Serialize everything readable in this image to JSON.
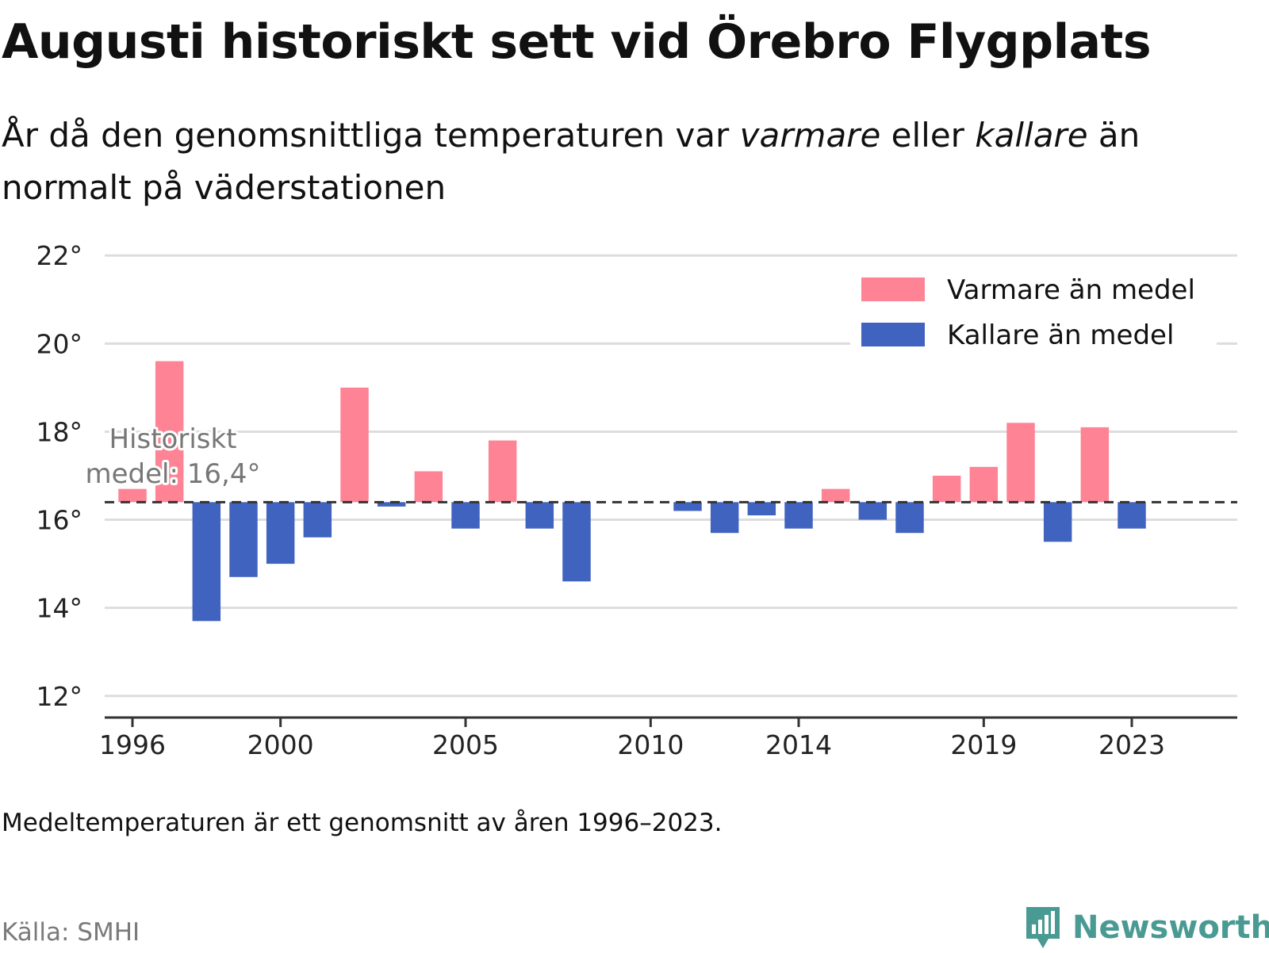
{
  "title": "Augusti historiskt sett vid Örebro Flygplats",
  "subtitle": {
    "part1": "År då den genomsnittliga temperaturen var ",
    "warm_word": "varmare",
    "part2": " eller ",
    "cold_word": "kallare",
    "part3": " än normalt på väderstationen"
  },
  "footnote": "Medeltemperaturen är ett genomsnitt av åren 1996–2023.",
  "source": "Källa: SMHI",
  "brand": "Newsworthy",
  "colors": {
    "warm": "#fe8394",
    "cold": "#4063bf",
    "grid": "#dddddd",
    "axis": "#333333",
    "brand": "#4a9a94"
  },
  "chart_data": {
    "type": "bar",
    "baseline": 16.4,
    "baseline_label": [
      "Historiskt",
      "medel: 16,4°"
    ],
    "ylim": [
      11.6,
      22.4
    ],
    "yticks": [
      12,
      14,
      16,
      18,
      20,
      22
    ],
    "ytick_labels": [
      "12°",
      "14°",
      "16°",
      "18°",
      "20°",
      "22°"
    ],
    "xticks": [
      1996,
      2000,
      2005,
      2010,
      2014,
      2019,
      2023
    ],
    "xtick_labels": [
      "1996",
      "2000",
      "2005",
      "2010",
      "2014",
      "2019",
      "2023"
    ],
    "xlim": [
      1995.25,
      2025.85
    ],
    "grid": true,
    "legend_position": "top-right",
    "legend": [
      {
        "key": "warm",
        "label": "Varmare än medel"
      },
      {
        "key": "cold",
        "label": "Kallare än medel"
      }
    ],
    "series": {
      "years": [
        1996,
        1997,
        1998,
        1999,
        2000,
        2001,
        2002,
        2003,
        2004,
        2005,
        2006,
        2007,
        2008,
        2011,
        2012,
        2013,
        2014,
        2015,
        2016,
        2017,
        2018,
        2019,
        2020,
        2021,
        2022,
        2023
      ],
      "values": [
        16.7,
        19.6,
        13.7,
        14.7,
        15.0,
        15.6,
        19.0,
        16.3,
        17.1,
        15.8,
        17.8,
        15.8,
        14.6,
        16.2,
        15.7,
        16.1,
        15.8,
        16.7,
        16.0,
        15.7,
        17.0,
        17.2,
        18.2,
        15.5,
        18.1,
        15.8
      ]
    }
  }
}
